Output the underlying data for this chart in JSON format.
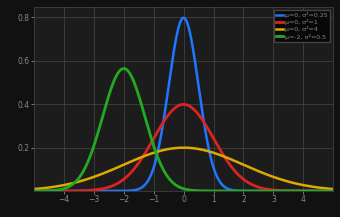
{
  "curves": [
    {
      "mu": 0.0,
      "sigma": 0.5,
      "color": "#1f77ff",
      "lw": 1.8,
      "label": "μ=0, σ²=0.25"
    },
    {
      "mu": 0.0,
      "sigma": 1.0,
      "color": "#dd2222",
      "lw": 2.0,
      "label": "μ=0, σ²=1"
    },
    {
      "mu": 0.0,
      "sigma": 2.0,
      "color": "#ddaa00",
      "lw": 1.8,
      "label": "μ=0, σ²=4"
    },
    {
      "mu": -2.0,
      "sigma": 0.7071,
      "color": "#22aa22",
      "lw": 2.0,
      "label": "μ=-2, σ²=0.5"
    }
  ],
  "xlim": [
    -5,
    5
  ],
  "ylim": [
    0,
    0.85
  ],
  "xticks": [
    -4,
    -3,
    -2,
    -1,
    0,
    1,
    2,
    3,
    4
  ],
  "yticks": [
    0.2,
    0.4,
    0.6,
    0.8
  ],
  "background_color": "#111111",
  "axes_facecolor": "#1c1c1c",
  "grid_color": "#484848",
  "tick_color": "#888888",
  "legend_facecolor": "#080808",
  "legend_edgecolor": "#444444"
}
